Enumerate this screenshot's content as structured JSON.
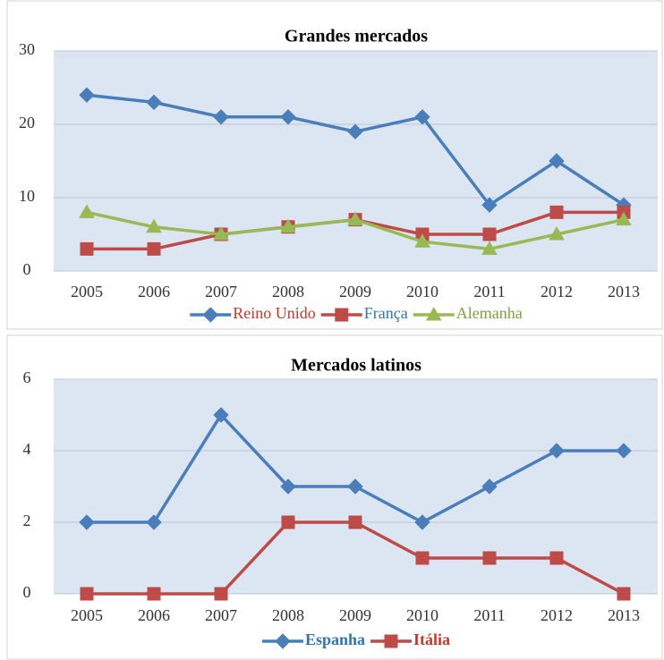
{
  "chart_data": [
    {
      "type": "line",
      "title": "Grandes mercados",
      "categories": [
        "2005",
        "2006",
        "2007",
        "2008",
        "2009",
        "2010",
        "2011",
        "2012",
        "2013"
      ],
      "series": [
        {
          "name": "Reino Unido",
          "color": "#4a7ebb",
          "label_color": "#c0392b",
          "marker": "diamond",
          "values": [
            24,
            23,
            21,
            21,
            19,
            21,
            9,
            15,
            9
          ]
        },
        {
          "name": "França",
          "color": "#be4b48",
          "label_color": "#2e75b6",
          "marker": "square",
          "values": [
            3,
            3,
            5,
            6,
            7,
            5,
            5,
            8,
            8
          ]
        },
        {
          "name": "Alemanha",
          "color": "#98b954",
          "label_color": "#7aa33a",
          "marker": "triangle",
          "values": [
            8,
            6,
            5,
            6,
            7,
            4,
            3,
            5,
            7
          ]
        }
      ],
      "ylim": [
        0,
        30
      ],
      "yticks": [
        0,
        10,
        20,
        30
      ],
      "grid": true,
      "legend": "bottom",
      "legend_bold": false
    },
    {
      "type": "line",
      "title": "Mercados latinos",
      "categories": [
        "2005",
        "2006",
        "2007",
        "2008",
        "2009",
        "2010",
        "2011",
        "2012",
        "2013"
      ],
      "series": [
        {
          "name": "Espanha",
          "color": "#4a7ebb",
          "label_color": "#2e75b6",
          "marker": "diamond",
          "values": [
            2,
            2,
            5,
            3,
            3,
            2,
            3,
            4,
            4
          ]
        },
        {
          "name": "Itália",
          "color": "#be4b48",
          "label_color": "#c0392b",
          "marker": "square",
          "values": [
            0,
            0,
            0,
            2,
            2,
            1,
            1,
            1,
            0
          ]
        }
      ],
      "ylim": [
        0,
        6
      ],
      "yticks": [
        0,
        2,
        4,
        6
      ],
      "grid": true,
      "legend": "bottom",
      "legend_bold": true
    }
  ]
}
